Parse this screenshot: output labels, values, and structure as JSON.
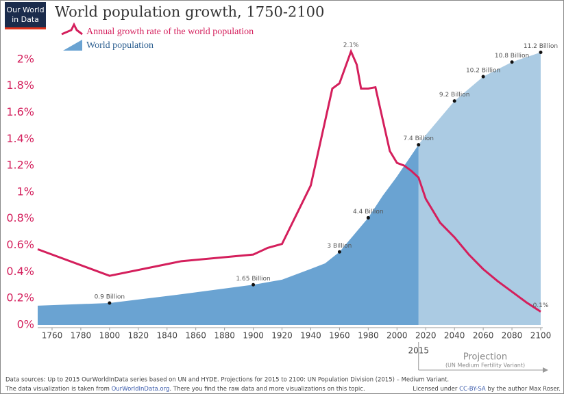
{
  "logo": [
    "Our World",
    "in Data"
  ],
  "chart_data": {
    "type": "line",
    "title": "World population growth, 1750-2100",
    "xlim": [
      1750,
      2100
    ],
    "xticks": [
      1760,
      1780,
      1800,
      1820,
      1840,
      1860,
      1880,
      1900,
      1920,
      1940,
      1960,
      1980,
      2000,
      2020,
      2040,
      2060,
      2080,
      2100
    ],
    "ylim": [
      0,
      2.2
    ],
    "yticks": [
      {
        "value": 0,
        "label": "0%"
      },
      {
        "value": 0.2,
        "label": "0.2%"
      },
      {
        "value": 0.4,
        "label": "0.4%"
      },
      {
        "value": 0.6,
        "label": "0.6%"
      },
      {
        "value": 0.8,
        "label": "0.8%"
      },
      {
        "value": 1,
        "label": "1%"
      },
      {
        "value": 1.2,
        "label": "1.2%"
      },
      {
        "value": 1.4,
        "label": "1.4%"
      },
      {
        "value": 1.6,
        "label": "1.6%"
      },
      {
        "value": 1.8,
        "label": "1.8%"
      },
      {
        "value": 2,
        "label": "2%"
      }
    ],
    "y2lim": [
      0,
      12
    ],
    "projection_start": 2015,
    "projection_label": "Projection",
    "projection_note": "(UN Medium Fertility Variant)",
    "series": [
      {
        "name": "World population",
        "type": "area",
        "axis": "y2",
        "color": "#6aa3d2",
        "projection_color": "#abcbe3",
        "x": [
          1750,
          1800,
          1850,
          1900,
          1920,
          1940,
          1950,
          1960,
          1970,
          1980,
          1990,
          2000,
          2015,
          2020,
          2030,
          2040,
          2050,
          2060,
          2070,
          2080,
          2090,
          2100
        ],
        "values": [
          0.79,
          0.9,
          1.26,
          1.65,
          1.86,
          2.3,
          2.53,
          3,
          3.7,
          4.4,
          5.3,
          6.1,
          7.4,
          7.8,
          8.5,
          9.2,
          9.7,
          10.2,
          10.5,
          10.8,
          11,
          11.2
        ],
        "value_labels": [
          null,
          "0.9 Billion",
          null,
          "1.65 Billion",
          null,
          null,
          null,
          "3 Billion",
          null,
          "4.4 Billion",
          null,
          null,
          "7.4 Billion",
          null,
          null,
          "9.2 Billion",
          null,
          "10.2 Billion",
          null,
          "10.8 Billion",
          null,
          "11.2 Billion"
        ]
      },
      {
        "name": "Annual growth rate of the world population",
        "type": "line",
        "color": "#d41f5c",
        "x": [
          1750,
          1800,
          1850,
          1900,
          1910,
          1920,
          1940,
          1955,
          1960,
          1968,
          1972,
          1975,
          1980,
          1985,
          1990,
          1995,
          2000,
          2005,
          2010,
          2015,
          2020,
          2030,
          2040,
          2050,
          2060,
          2070,
          2080,
          2090,
          2100
        ],
        "values": [
          0.57,
          0.37,
          0.48,
          0.53,
          0.58,
          0.61,
          1.05,
          1.78,
          1.82,
          2.06,
          1.96,
          1.78,
          1.78,
          1.79,
          1.55,
          1.31,
          1.22,
          1.2,
          1.16,
          1.11,
          0.95,
          0.77,
          0.66,
          0.53,
          0.42,
          0.33,
          0.25,
          0.17,
          0.1
        ],
        "value_labels": [
          null,
          null,
          null,
          null,
          null,
          null,
          null,
          null,
          null,
          "2.1%",
          null,
          null,
          null,
          null,
          null,
          null,
          null,
          null,
          null,
          null,
          null,
          null,
          null,
          null,
          null,
          null,
          null,
          null,
          "0.1%"
        ]
      }
    ]
  },
  "footer": {
    "sources": "Data sources:  Up to 2015 OurWorldInData series based on UN and HYDE. Projections for 2015 to 2100: UN Population Division (2015) – Medium Variant.",
    "viz": [
      "The data visualization is taken from ",
      "OurWorldInData.org",
      ". There you find the raw data and more visualizations on this topic."
    ],
    "license": [
      "Licensed under ",
      "CC-BY-SA",
      " by the author Max Roser."
    ]
  }
}
